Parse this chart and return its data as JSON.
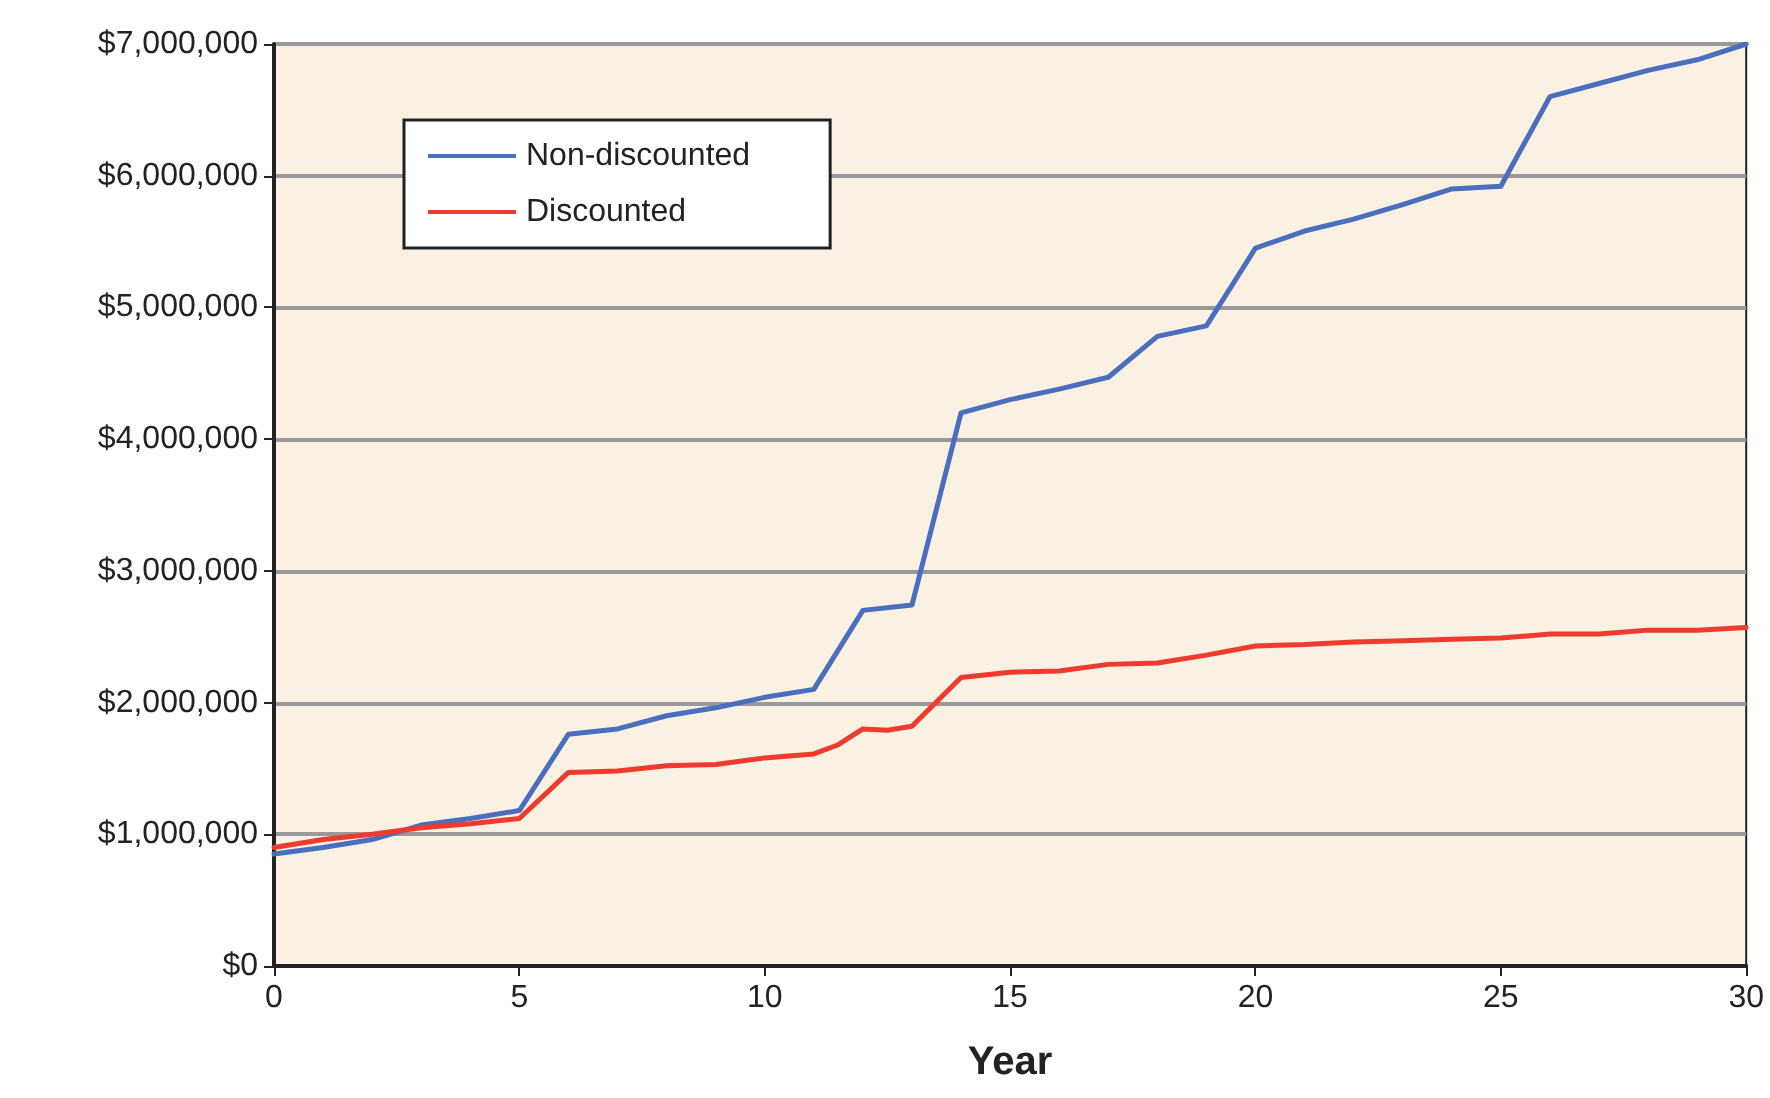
{
  "chart_data": {
    "type": "line",
    "xlabel": "Year",
    "series": [
      {
        "name": "Non-discounted",
        "color": "#4a6fbe",
        "x": [
          0,
          1,
          2,
          3,
          4,
          5,
          6,
          7,
          8,
          9,
          10,
          11,
          12,
          13,
          14,
          15,
          16,
          17,
          18,
          19,
          20,
          21,
          22,
          23,
          24,
          25,
          26,
          27,
          28,
          29,
          30
        ],
        "values": [
          850000,
          900000,
          960000,
          1070000,
          1120000,
          1180000,
          1760000,
          1800000,
          1900000,
          1960000,
          2040000,
          2100000,
          2700000,
          2740000,
          4200000,
          4300000,
          4380000,
          4470000,
          4780000,
          4860000,
          5450000,
          5580000,
          5670000,
          5780000,
          5900000,
          5920000,
          6600000,
          6700000,
          6800000,
          6880000,
          7000000
        ]
      },
      {
        "name": "Discounted",
        "color": "#ee3b2e",
        "x": [
          0,
          1,
          2,
          3,
          4,
          5,
          6,
          7,
          8,
          9,
          10,
          11,
          11.5,
          12,
          12.5,
          13,
          14,
          15,
          16,
          17,
          18,
          19,
          20,
          21,
          22,
          23,
          24,
          25,
          26,
          27,
          28,
          29,
          30
        ],
        "values": [
          900000,
          960000,
          1000000,
          1050000,
          1080000,
          1120000,
          1470000,
          1480000,
          1520000,
          1530000,
          1580000,
          1610000,
          1680000,
          1800000,
          1790000,
          1820000,
          2190000,
          2230000,
          2240000,
          2290000,
          2300000,
          2360000,
          2430000,
          2440000,
          2460000,
          2470000,
          2480000,
          2490000,
          2520000,
          2520000,
          2550000,
          2550000,
          2570000
        ]
      }
    ],
    "xlim": [
      0,
      30
    ],
    "xticks": [
      0,
      5,
      10,
      15,
      20,
      25,
      30
    ],
    "ylim": [
      0,
      7000000
    ],
    "yticks": [
      {
        "value": 0,
        "label": "$0"
      },
      {
        "value": 1000000,
        "label": "$1,000,000"
      },
      {
        "value": 2000000,
        "label": "$2,000,000"
      },
      {
        "value": 3000000,
        "label": "$3,000,000"
      },
      {
        "value": 4000000,
        "label": "$4,000,000"
      },
      {
        "value": 5000000,
        "label": "$5,000,000"
      },
      {
        "value": 6000000,
        "label": "$6,000,000"
      },
      {
        "value": 7000000,
        "label": "$7,000,000"
      }
    ],
    "grid": "y",
    "legend": "top left",
    "marker": "none",
    "line_style": "solid"
  }
}
